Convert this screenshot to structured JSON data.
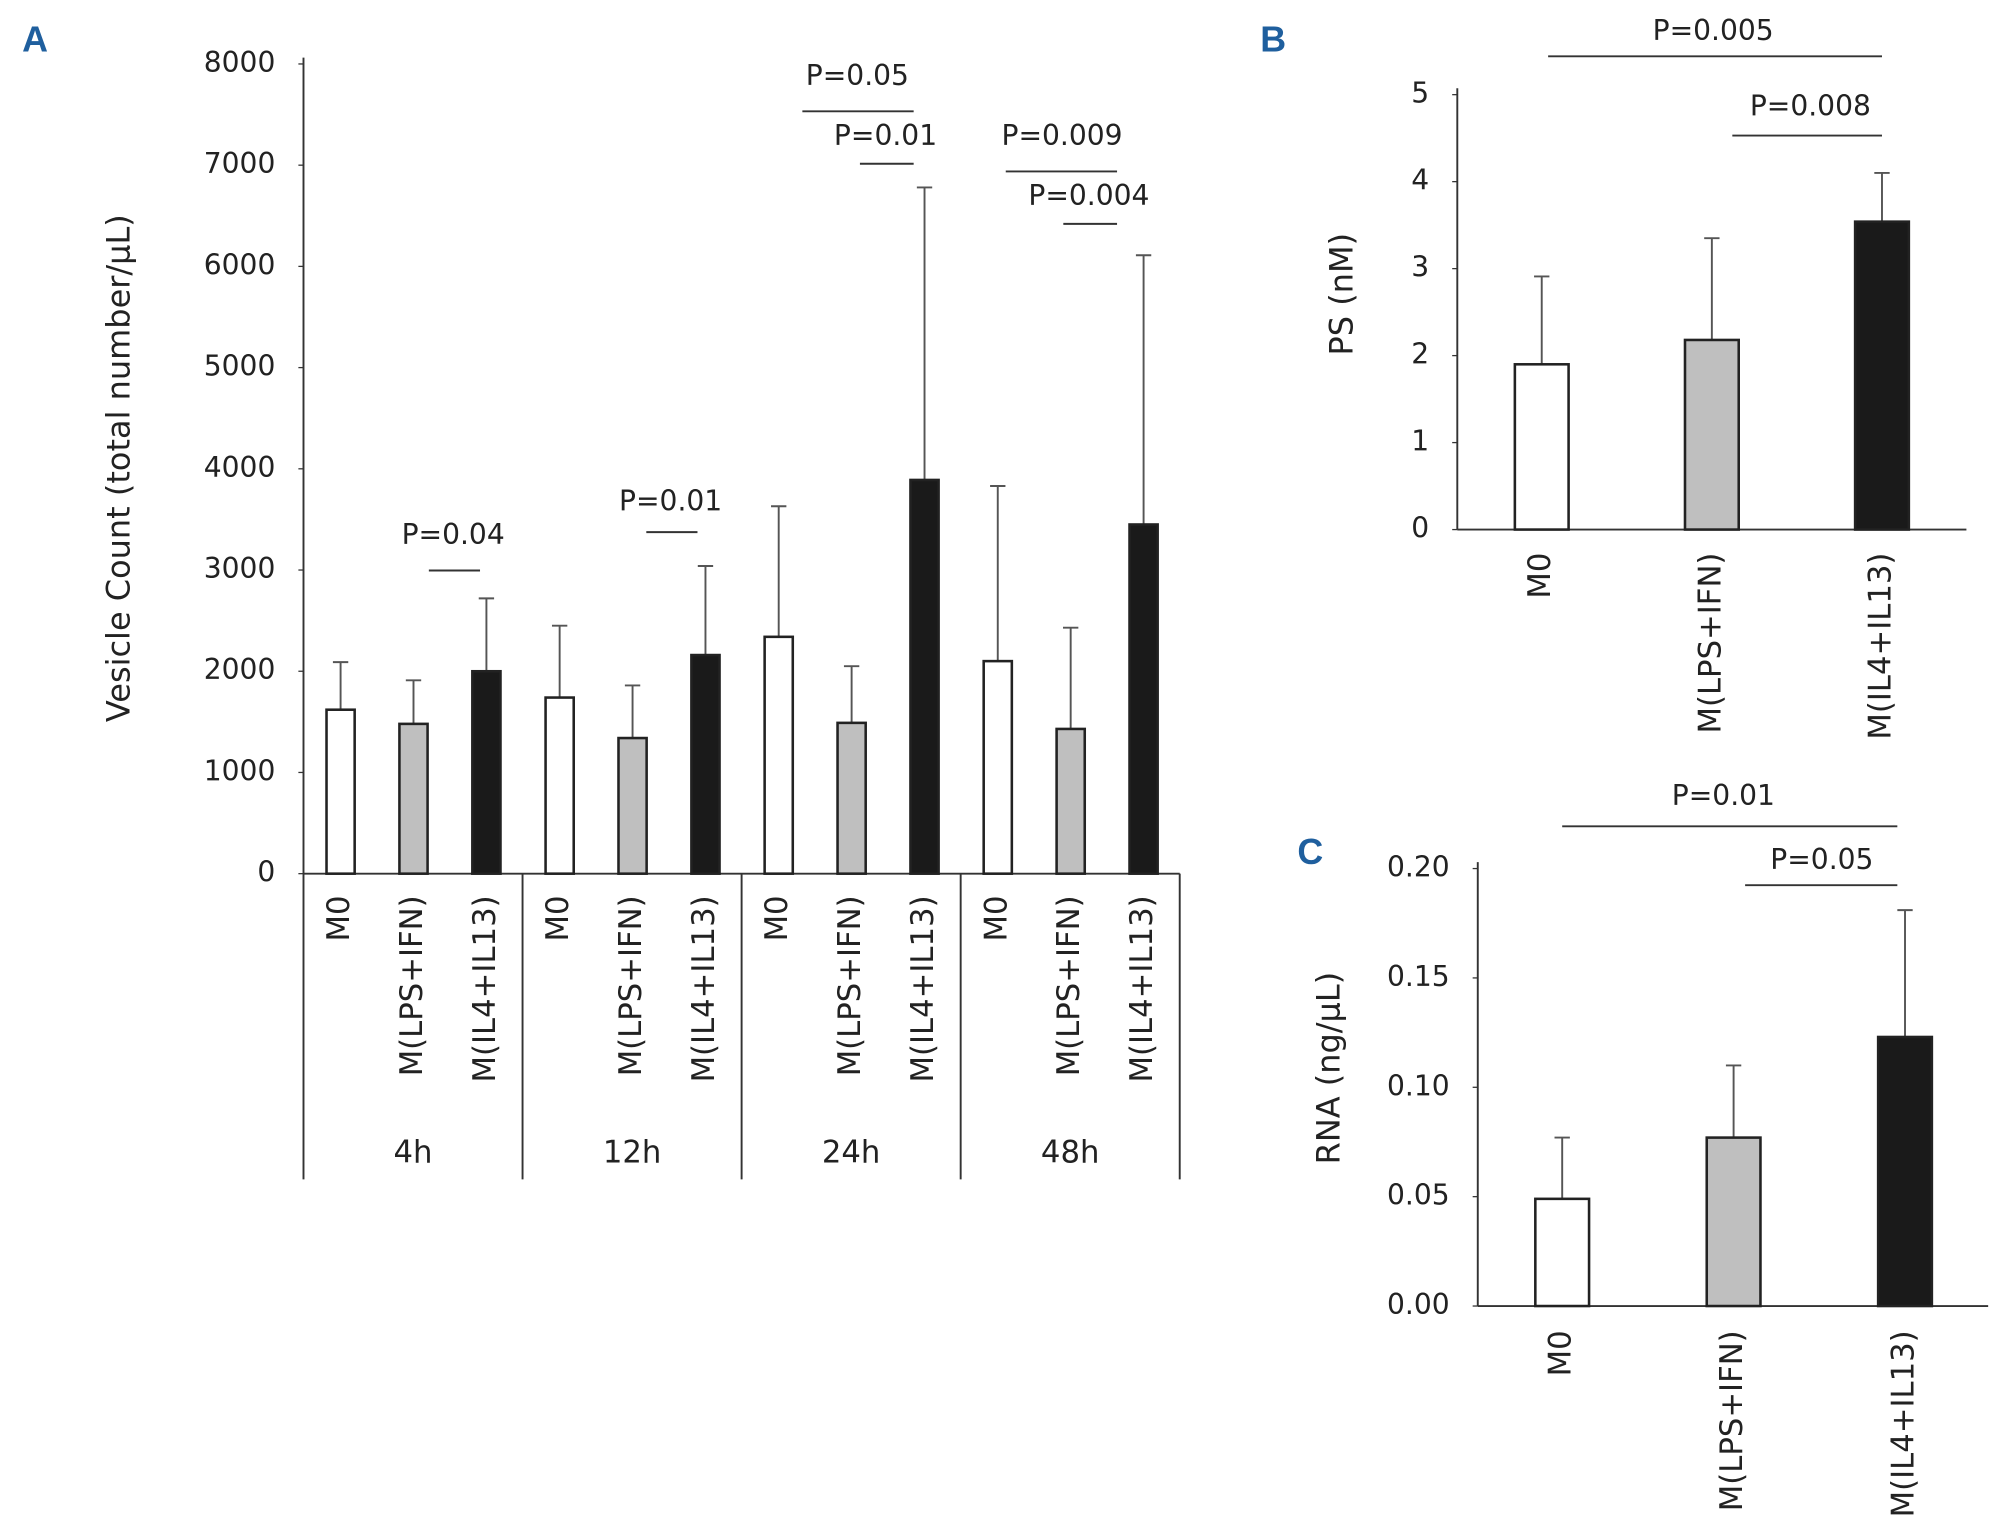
{
  "chart_data": [
    {
      "type": "bar",
      "panel_label": "A",
      "y_label": "Vesicle Count (total number/μL)",
      "categories": [
        "4h",
        "12h",
        "24h",
        "48h"
      ],
      "series": [
        {
          "name": "M0",
          "color": "#ffffff",
          "values": [
            1620,
            1740,
            2340,
            2100
          ],
          "errors": [
            470,
            710,
            1290,
            1730
          ]
        },
        {
          "name": "M(LPS+IFN)",
          "color": "#bfbfbf",
          "values": [
            1480,
            1340,
            1490,
            1430
          ],
          "errors": [
            430,
            520,
            560,
            1000
          ]
        },
        {
          "name": "M(IL4+IL13)",
          "color": "#1a1a1a",
          "values": [
            2000,
            2160,
            3890,
            3450
          ],
          "errors": [
            720,
            880,
            2890,
            2660
          ]
        }
      ],
      "ylim": [
        0,
        8000
      ],
      "yticks": [
        0,
        1000,
        2000,
        3000,
        4000,
        5000,
        6000,
        7000,
        8000
      ],
      "annotations": [
        "P=0.04",
        "P=0.01",
        "P=0.05",
        "P=0.01",
        "P=0.009",
        "P=0.004"
      ]
    },
    {
      "type": "bar",
      "panel_label": "B",
      "y_label": "PS (nM)",
      "categories": [
        "M0",
        "M(LPS+IFN)",
        "M(IL4+IL13)"
      ],
      "values": [
        1.9,
        2.18,
        3.54
      ],
      "errors": [
        1.01,
        1.17,
        0.56
      ],
      "colors": [
        "#ffffff",
        "#bfbfbf",
        "#1a1a1a"
      ],
      "ylim": [
        0,
        5
      ],
      "yticks": [
        0,
        1,
        2,
        3,
        4,
        5
      ],
      "annotations": [
        "P=0.005",
        "P=0.008"
      ]
    },
    {
      "type": "bar",
      "panel_label": "C",
      "y_label": "RNA (ng/μL)",
      "categories": [
        "M0",
        "M(LPS+IFN)",
        "M(IL4+IL13)"
      ],
      "values": [
        0.049,
        0.077,
        0.123
      ],
      "errors": [
        0.028,
        0.033,
        0.058
      ],
      "colors": [
        "#ffffff",
        "#bfbfbf",
        "#1a1a1a"
      ],
      "ylim": [
        0,
        0.2
      ],
      "yticks": [
        {
          "value": 0,
          "label": "0.00"
        },
        {
          "value": 0.05,
          "label": "0.05"
        },
        {
          "value": 0.1,
          "label": "0.10"
        },
        {
          "value": 0.15,
          "label": "0.15"
        },
        {
          "value": 0.2,
          "label": "0.20"
        }
      ],
      "annotations": [
        "P=0.01",
        "P=0.05"
      ]
    }
  ]
}
